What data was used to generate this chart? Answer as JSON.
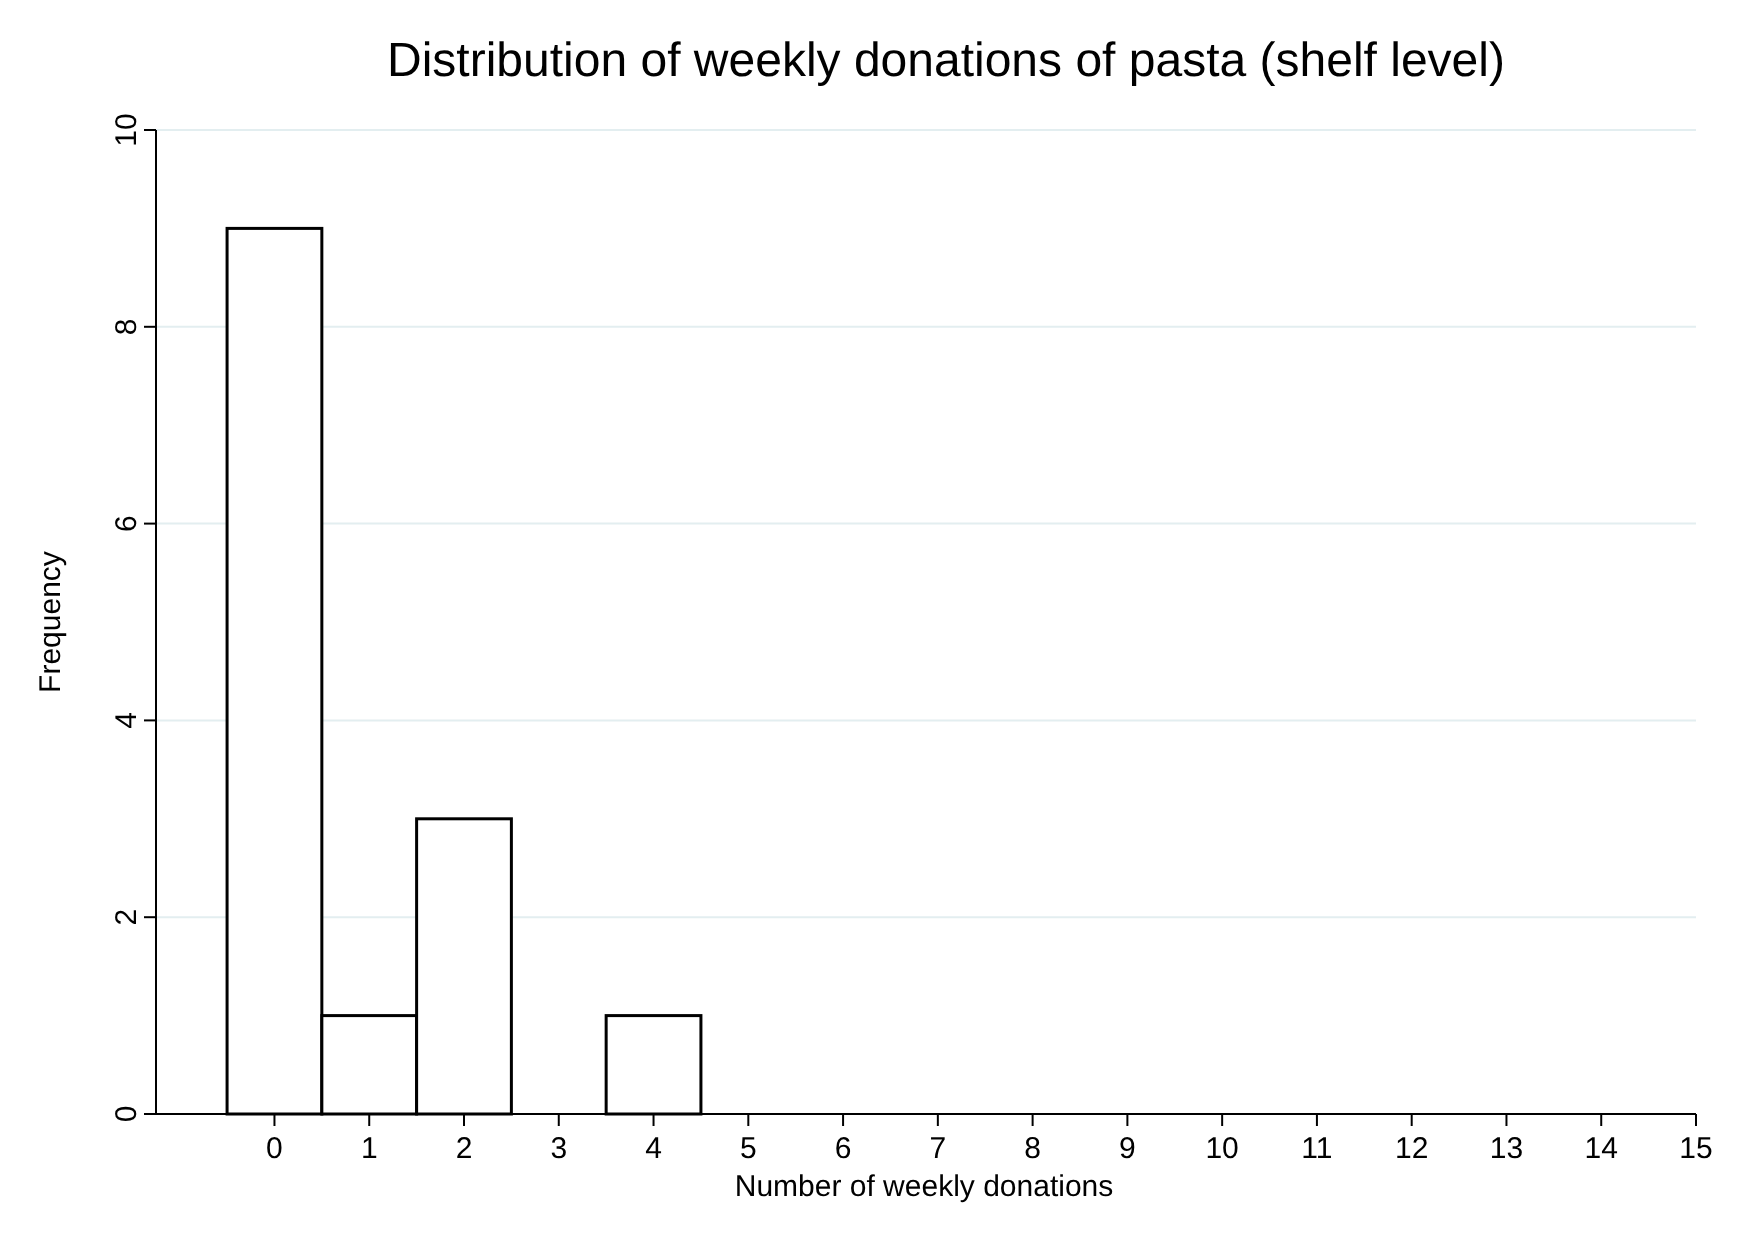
{
  "chart_data": {
    "type": "histogram",
    "title": "Distribution of weekly donations of pasta (shelf level)",
    "xlabel": "Number of weekly donations",
    "ylabel": "Frequency",
    "bins": [
      -0.5,
      0.5,
      1.5,
      2.5,
      3.5,
      4.5
    ],
    "values": [
      9,
      1,
      3,
      0,
      1
    ],
    "color": "#ffffff",
    "xlim": [
      -1.25,
      15
    ],
    "xticks": [
      0,
      1,
      2,
      3,
      4,
      5,
      6,
      7,
      8,
      9,
      10,
      11,
      12,
      13,
      14,
      15
    ],
    "ylim": [
      0,
      10
    ],
    "yticks": [
      0,
      2,
      4,
      6,
      8,
      10
    ],
    "grid": "y"
  }
}
